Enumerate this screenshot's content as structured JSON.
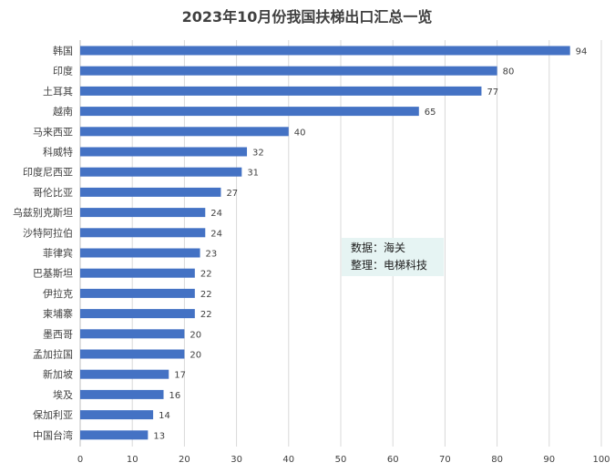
{
  "chart_data": {
    "type": "bar",
    "orientation": "horizontal",
    "title": "2023年10月份我国扶梯出口汇总一览",
    "xlabel": "",
    "ylabel": "",
    "categories": [
      "韩国",
      "印度",
      "土耳其",
      "越南",
      "马来西亚",
      "科威特",
      "印度尼西亚",
      "哥伦比亚",
      "乌兹别克斯坦",
      "沙特阿拉伯",
      "菲律宾",
      "巴基斯坦",
      "伊拉克",
      "柬埔寨",
      "墨西哥",
      "孟加拉国",
      "新加坡",
      "埃及",
      "保加利亚",
      "中国台湾"
    ],
    "values": [
      94,
      80,
      77,
      65,
      40,
      32,
      31,
      27,
      24,
      24,
      23,
      22,
      22,
      22,
      20,
      20,
      17,
      16,
      14,
      13
    ],
    "xlim": [
      0,
      100
    ],
    "xticks": [
      "0",
      "10",
      "20",
      "30",
      "40",
      "50",
      "60",
      "70",
      "80",
      "90",
      "100"
    ],
    "grid": true,
    "bar_color": "#4472c4",
    "show_data_labels": true
  },
  "note": {
    "line1": "数据：海关",
    "line2": "整理：电梯科技",
    "background": "#e6f4f3"
  }
}
